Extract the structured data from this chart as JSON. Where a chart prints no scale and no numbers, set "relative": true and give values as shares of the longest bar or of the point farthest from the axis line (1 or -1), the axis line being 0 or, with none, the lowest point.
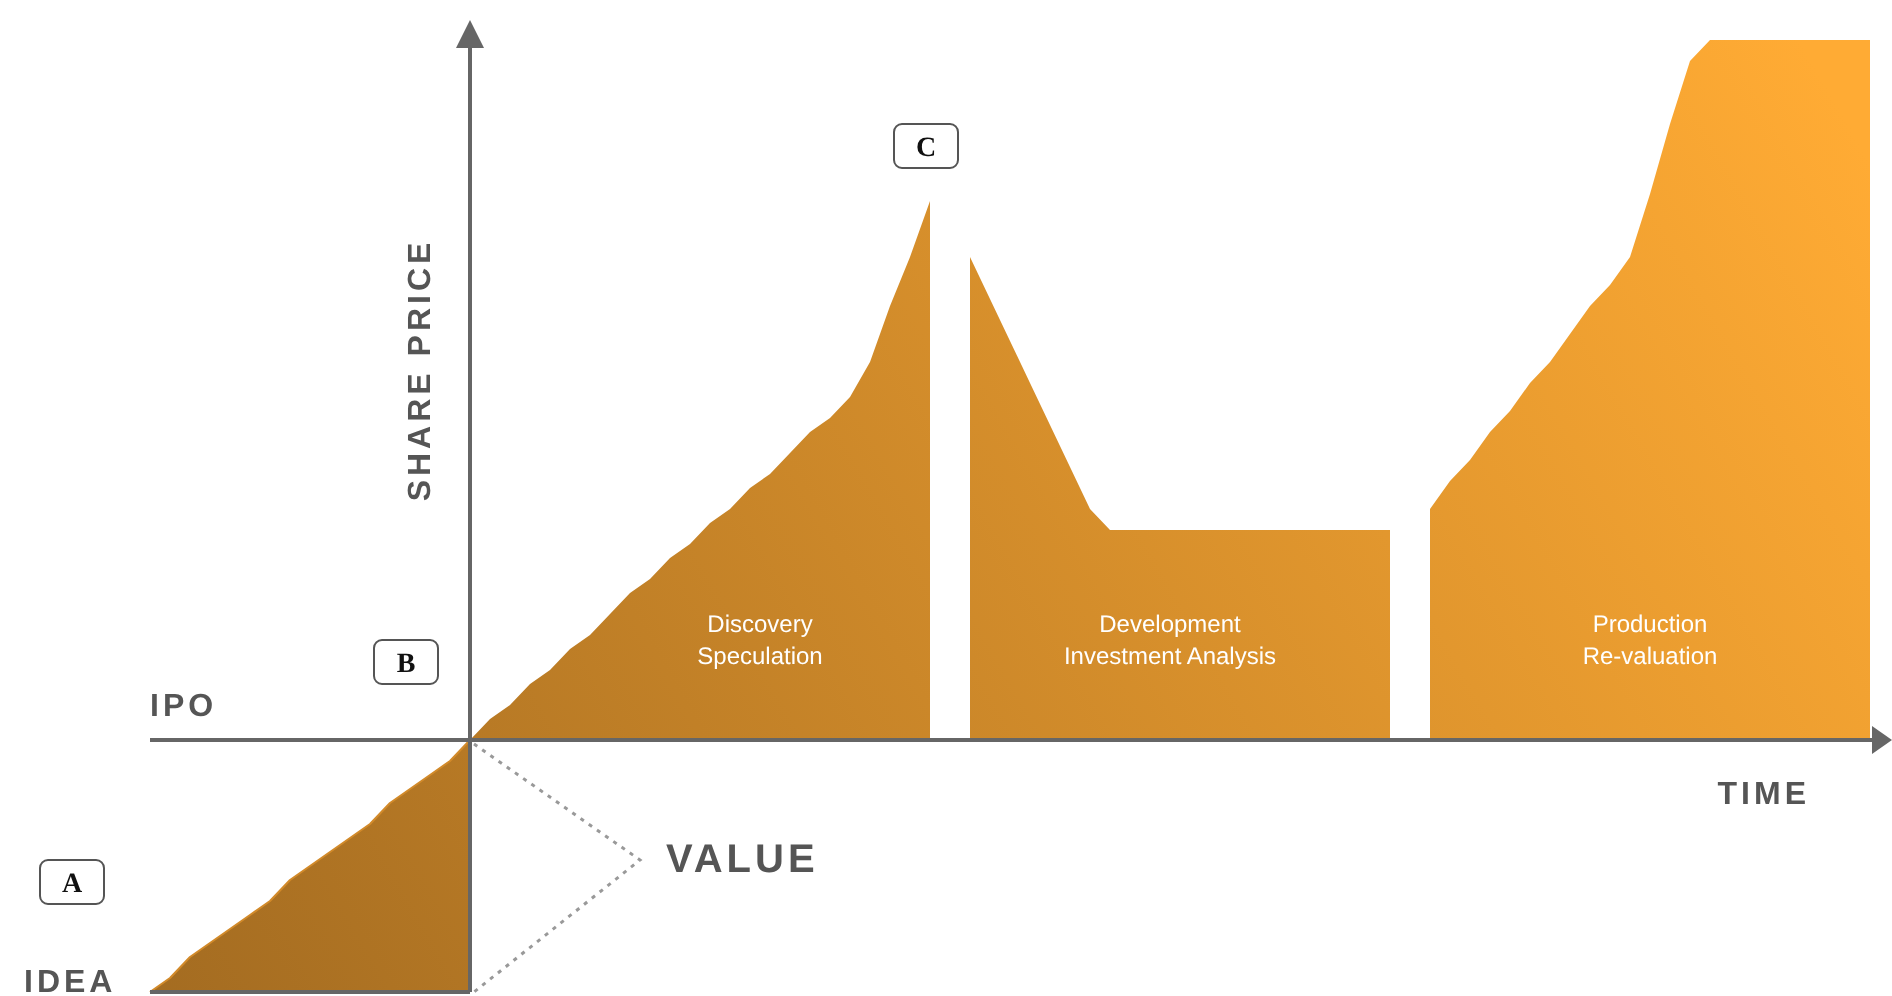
{
  "chart_data": {
    "type": "area",
    "relative": true,
    "xlabel": "TIME",
    "ylabel": "SHARE PRICE",
    "categories": [
      null,
      null,
      null,
      null,
      null,
      null,
      null,
      null,
      null,
      null,
      null,
      null,
      null,
      null,
      null,
      null,
      null,
      null,
      null,
      null,
      null,
      null,
      null,
      null,
      null,
      null,
      null,
      null,
      null,
      null,
      null,
      null,
      null,
      null,
      null,
      null,
      null,
      null,
      null,
      null,
      null,
      null,
      null,
      null,
      null,
      null,
      null,
      null,
      null,
      null,
      null,
      null,
      null,
      null,
      null,
      null,
      null,
      null,
      null,
      null,
      null,
      null,
      null,
      null,
      null,
      null,
      null,
      null,
      null,
      null,
      null,
      null,
      null,
      null,
      null,
      null,
      null,
      null,
      null,
      null,
      null,
      null,
      null,
      null,
      null,
      null,
      null
    ],
    "series": [
      {
        "type": "line",
        "color": "#d28a2a",
        "lower": [
          -0.36,
          -0.36,
          -0.36,
          -0.36,
          -0.36,
          -0.36,
          -0.36,
          -0.36,
          -0.36,
          -0.36,
          -0.36,
          -0.36,
          -0.36,
          -0.36,
          -0.36,
          -0.36,
          -0.36,
          null,
          null,
          null,
          null,
          null,
          null,
          null,
          null,
          null,
          null,
          null,
          null,
          null,
          null,
          null,
          null,
          null,
          null,
          null,
          null,
          null,
          null,
          null,
          null,
          null,
          null,
          null,
          null,
          null,
          null,
          null,
          null,
          null,
          null,
          null,
          null,
          null,
          null,
          null,
          null,
          null,
          null,
          null,
          null,
          null,
          null,
          null,
          null,
          null,
          null,
          null,
          null,
          null,
          null,
          null,
          null,
          null,
          null,
          null,
          null,
          null,
          null,
          null,
          null,
          null,
          null,
          null,
          null,
          null,
          null
        ],
        "upper": [
          -0.36,
          -0.34,
          -0.31,
          -0.29,
          -0.27,
          -0.25,
          -0.23,
          -0.2,
          -0.18,
          -0.16,
          -0.14,
          -0.12,
          -0.09,
          -0.07,
          -0.05,
          -0.03,
          0,
          null,
          null,
          null,
          null,
          null,
          null,
          null,
          null,
          null,
          null,
          null,
          null,
          null,
          null,
          null,
          null,
          null,
          null,
          null,
          null,
          null,
          null,
          null,
          null,
          null,
          null,
          null,
          null,
          null,
          null,
          null,
          null,
          null,
          null,
          null,
          null,
          null,
          null,
          null,
          null,
          null,
          null,
          null,
          null,
          null,
          null,
          null,
          null,
          null,
          null,
          null,
          null,
          null,
          null,
          null,
          null,
          null,
          null,
          null,
          null,
          null,
          null,
          null,
          null,
          null,
          null,
          null,
          null,
          null,
          null
        ],
        "values": [
          -0.36,
          -0.34,
          -0.31,
          -0.29,
          -0.27,
          -0.25,
          -0.23,
          -0.2,
          -0.18,
          -0.16,
          -0.14,
          -0.12,
          -0.09,
          -0.07,
          -0.05,
          -0.03,
          0,
          null,
          null,
          null,
          null,
          null,
          null,
          null,
          null,
          null,
          null,
          null,
          null,
          null,
          null,
          null,
          null,
          null,
          null,
          null,
          null,
          null,
          null,
          null,
          null,
          null,
          null,
          null,
          null,
          null,
          null,
          null,
          null,
          null,
          null,
          null,
          null,
          null,
          null,
          null,
          null,
          null,
          null,
          null,
          null,
          null,
          null,
          null,
          null,
          null,
          null,
          null,
          null,
          null,
          null,
          null,
          null,
          null,
          null,
          null,
          null,
          null,
          null,
          null,
          null,
          null,
          null,
          null,
          null,
          null,
          null
        ]
      },
      {
        "color": "#d28a2a",
        "values": [
          null,
          null,
          null,
          null,
          null,
          null,
          null,
          null,
          null,
          null,
          null,
          null,
          null,
          null,
          null,
          null,
          0,
          0.03,
          0.05,
          0.08,
          0.1,
          0.13,
          0.15,
          0.18,
          0.21,
          0.23,
          0.26,
          0.28,
          0.31,
          0.33,
          0.36,
          0.38,
          0.41,
          0.44,
          0.46,
          0.49,
          0.54,
          0.62,
          0.69,
          0.77,
          null,
          null,
          null,
          null,
          null,
          null,
          null,
          null,
          null,
          null,
          null,
          null,
          null,
          null,
          null,
          null,
          null,
          null,
          null,
          null,
          null,
          null,
          null,
          null,
          null,
          null,
          null,
          null,
          null,
          null,
          null,
          null,
          null,
          null,
          null,
          null,
          null,
          null,
          null,
          null,
          null,
          null,
          null,
          null,
          null,
          null,
          null
        ]
      },
      {
        "color": "#d28a2a",
        "values": [
          null,
          null,
          null,
          null,
          null,
          null,
          null,
          null,
          null,
          null,
          null,
          null,
          null,
          null,
          null,
          null,
          null,
          null,
          null,
          null,
          null,
          null,
          null,
          null,
          null,
          null,
          null,
          null,
          null,
          null,
          null,
          null,
          null,
          null,
          null,
          null,
          null,
          null,
          null,
          null,
          null,
          0.69,
          0.63,
          0.57,
          0.51,
          0.45,
          0.39,
          0.33,
          0.3,
          0.3,
          0.3,
          0.3,
          0.3,
          0.3,
          0.3,
          0.3,
          0.3,
          0.3,
          0.3,
          0.3,
          0.3,
          0.3,
          0.3,
          null,
          null,
          null,
          null,
          null,
          null,
          null,
          null,
          null,
          null,
          null,
          null,
          null,
          null,
          null,
          null,
          null,
          null,
          null,
          null,
          null,
          null,
          null,
          null
        ]
      },
      {
        "color": "#d28a2a",
        "values": [
          null,
          null,
          null,
          null,
          null,
          null,
          null,
          null,
          null,
          null,
          null,
          null,
          null,
          null,
          null,
          null,
          null,
          null,
          null,
          null,
          null,
          null,
          null,
          null,
          null,
          null,
          null,
          null,
          null,
          null,
          null,
          null,
          null,
          null,
          null,
          null,
          null,
          null,
          null,
          null,
          null,
          null,
          null,
          null,
          null,
          null,
          null,
          null,
          null,
          null,
          null,
          null,
          null,
          null,
          null,
          null,
          null,
          null,
          null,
          null,
          null,
          null,
          null,
          null,
          0.33,
          0.37,
          0.4,
          0.44,
          0.47,
          0.51,
          0.54,
          0.58,
          0.62,
          0.65,
          0.69,
          0.78,
          0.88,
          0.97,
          1,
          1,
          1,
          1,
          1,
          1,
          1,
          1,
          1
        ]
      }
    ],
    "annotations": [
      "A",
      "B",
      "C",
      "IPO",
      "IDEA",
      "VALUE",
      "Discovery\nSpeculation",
      "Development\nInvestment Analysis",
      "Production\nRe-valuation"
    ]
  }
}
